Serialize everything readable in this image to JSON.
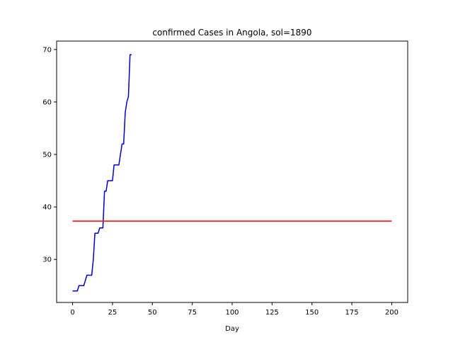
{
  "chart_data": {
    "type": "line",
    "title": "confirmed Cases in Angola, sol=1890",
    "xlabel": "Day",
    "ylabel": "",
    "xlim": [
      -10,
      210
    ],
    "ylim": [
      21.8,
      71.6
    ],
    "xticks": [
      0,
      25,
      50,
      75,
      100,
      125,
      150,
      175,
      200
    ],
    "yticks": [
      30,
      40,
      50,
      60,
      70
    ],
    "grid": false,
    "series": [
      {
        "color": "#0000cd",
        "x": [
          0,
          1,
          2,
          3,
          4,
          5,
          6,
          7,
          8,
          9,
          10,
          11,
          12,
          13,
          14,
          15,
          16,
          17,
          18,
          19,
          20,
          21,
          22,
          23,
          24,
          25,
          26,
          27,
          28,
          29,
          30,
          31,
          32,
          33,
          34,
          35,
          36,
          37
        ],
        "y": [
          24,
          24,
          24,
          24,
          25,
          25,
          25,
          25,
          26,
          27,
          27,
          27,
          27,
          30,
          35,
          35,
          35,
          36,
          36,
          36,
          43,
          43,
          45,
          45,
          45,
          45,
          48,
          48,
          48,
          48,
          50,
          52,
          52,
          58,
          60,
          61,
          69,
          69
        ]
      },
      {
        "color": "#ff0000",
        "x": [
          0,
          200
        ],
        "y": [
          37.3,
          37.3
        ]
      }
    ]
  }
}
